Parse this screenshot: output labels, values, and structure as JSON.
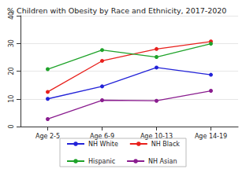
{
  "chart_data": {
    "type": "line",
    "title": "% Children with Obesity by Race and Ethnicity, 2017-2020",
    "categories": [
      "Age 2-5",
      "Age 6-9",
      "Age 10-13",
      "Age 14-19"
    ],
    "series": [
      {
        "name": "NH White",
        "color": "#2323d8",
        "values": [
          10.0,
          14.5,
          21.3,
          18.7
        ]
      },
      {
        "name": "NH Black",
        "color": "#e8201c",
        "values": [
          12.5,
          23.7,
          28.0,
          30.7
        ]
      },
      {
        "name": "Hispanic",
        "color": "#1fa32a",
        "values": [
          20.7,
          27.6,
          25.1,
          29.9
        ]
      },
      {
        "name": "NH Asian",
        "color": "#8a1d8f",
        "values": [
          2.7,
          9.5,
          9.3,
          12.9
        ]
      }
    ],
    "ylim": [
      0,
      40
    ],
    "yticks": [
      0,
      10,
      20,
      30,
      40
    ],
    "grid": true,
    "legend": "bottom",
    "marker": "circle"
  }
}
